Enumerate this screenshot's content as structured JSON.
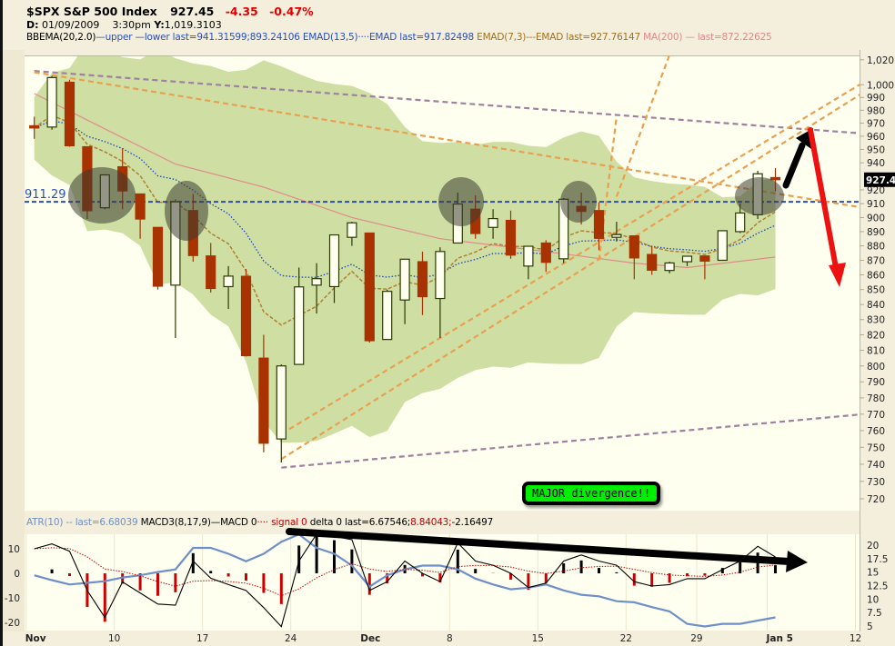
{
  "header": {
    "symbol_title": "$SPX S&P 500 Index",
    "last_price": "927.45",
    "change": "-4.35",
    "change_pct": "-0.47%",
    "date_label": "D:",
    "date_value": "01/09/2009",
    "time_value": "3:30pm",
    "y_label": "Y:",
    "y_value": "1,019.3103"
  },
  "legend": {
    "bb_name": "BBEMA(20,2.0)",
    "bb_upper": "upper",
    "bb_lower": "lower",
    "bb_last": "last=941.31599;893.24106",
    "ema13_name": "EMAD(13,5)",
    "ema13_last": "EMAD last=917.82498",
    "ema7_name": "EMAD(7,3)",
    "ema7_last": "EMAD last=927.76147",
    "ma200_name": "MA(200)",
    "ma200_last": "last=872.22625",
    "atr_name": "ATR(10)",
    "atr_last": "last=6.68039",
    "macd_name": "MACD3(8,17,9)",
    "macd_line": "MACD 0",
    "signal_line": "signal 0",
    "delta_last": "delta 0 last=6.67546;",
    "signal_last": "8.84043;",
    "delta_value": "-2.16497"
  },
  "annotation": {
    "text": "MAJOR divergence!!"
  },
  "price_badge": "927.4",
  "colors": {
    "up_candle": "#2a3a00",
    "down_candle": "#a83200",
    "bb_fill": "#cfdfa4",
    "ema13": "#2244bb",
    "ema7": "#b08030",
    "ma200": "#e08a8a",
    "support": "#2a4fb8",
    "trend_orange": "#e8a050",
    "trend_purple": "#a080a0",
    "macd": "#000000",
    "signal": "#cc0000",
    "atr": "#6f8fc8",
    "arrow_up": "#000000",
    "arrow_down": "#ee1111"
  },
  "chart_data": [
    {
      "type": "candlestick",
      "title": "$SPX S&P 500 Index",
      "scale": "log",
      "ylim": [
        715,
        1025
      ],
      "y_ticks": [
        "1,020",
        "1,000",
        "990",
        "980",
        "970",
        "960",
        "950",
        "940",
        "920",
        "910",
        "900",
        "890",
        "880",
        "870",
        "860",
        "850",
        "840",
        "830",
        "820",
        "810",
        "800",
        "790",
        "780",
        "770",
        "760",
        "750",
        "740",
        "730",
        "720"
      ],
      "x_ticks": [
        {
          "date": "2008-11-03",
          "label": "Nov",
          "bold": true
        },
        {
          "date": "2008-11-10",
          "label": "10"
        },
        {
          "date": "2008-11-17",
          "label": "17"
        },
        {
          "date": "2008-11-24",
          "label": "24"
        },
        {
          "date": "2008-12-01",
          "label": "Dec",
          "bold": true
        },
        {
          "date": "2008-12-08",
          "label": "8"
        },
        {
          "date": "2008-12-15",
          "label": "15"
        },
        {
          "date": "2008-12-22",
          "label": "22"
        },
        {
          "date": "2008-12-29",
          "label": "29"
        },
        {
          "date": "2009-01-05",
          "label": "Jan 5",
          "bold": true
        },
        {
          "date": "2009-01-12",
          "label": "12"
        }
      ],
      "support_level": {
        "value": 911.29,
        "label": "911.29"
      },
      "dates": [
        "2008-11-03",
        "2008-11-04",
        "2008-11-05",
        "2008-11-06",
        "2008-11-07",
        "2008-11-10",
        "2008-11-11",
        "2008-11-12",
        "2008-11-13",
        "2008-11-14",
        "2008-11-17",
        "2008-11-18",
        "2008-11-19",
        "2008-11-20",
        "2008-11-21",
        "2008-11-24",
        "2008-11-25",
        "2008-11-26",
        "2008-11-28",
        "2008-12-01",
        "2008-12-02",
        "2008-12-03",
        "2008-12-04",
        "2008-12-05",
        "2008-12-08",
        "2008-12-09",
        "2008-12-10",
        "2008-12-11",
        "2008-12-12",
        "2008-12-15",
        "2008-12-16",
        "2008-12-17",
        "2008-12-18",
        "2008-12-19",
        "2008-12-22",
        "2008-12-23",
        "2008-12-24",
        "2008-12-26",
        "2008-12-29",
        "2008-12-30",
        "2008-12-31",
        "2009-01-02",
        "2009-01-05"
      ],
      "ohlc": [
        [
          968,
          975,
          958,
          966.3
        ],
        [
          967,
          1007,
          965,
          1005.75
        ],
        [
          1002,
          1004,
          952,
          952.77
        ],
        [
          952,
          952,
          899,
          904.88
        ],
        [
          907,
          931,
          906,
          930.99
        ],
        [
          937,
          951,
          906,
          919.21
        ],
        [
          917,
          917,
          885,
          898.95
        ],
        [
          893,
          893,
          850,
          852.3
        ],
        [
          853,
          913,
          818,
          911.29
        ],
        [
          905,
          917,
          869,
          873.29
        ],
        [
          873,
          882,
          848,
          850.75
        ],
        [
          852,
          866,
          837,
          859.12
        ],
        [
          859,
          864,
          806,
          806.58
        ],
        [
          805,
          820,
          747,
          752.44
        ],
        [
          755,
          801,
          741,
          800.03
        ],
        [
          801,
          865,
          801,
          851.81
        ],
        [
          853,
          868,
          834,
          857.39
        ],
        [
          852,
          887,
          841,
          887.68
        ],
        [
          886,
          897,
          880,
          896.24
        ],
        [
          889,
          889,
          815,
          816.21
        ],
        [
          817,
          850,
          817,
          848.81
        ],
        [
          843,
          871,
          827,
          870.74
        ],
        [
          869,
          876,
          833,
          845.22
        ],
        [
          844,
          879,
          818,
          876.07
        ],
        [
          882,
          918,
          882,
          909.7
        ],
        [
          906,
          916,
          885,
          888.67
        ],
        [
          893,
          906,
          885,
          899.24
        ],
        [
          898,
          905,
          871,
          873.59
        ],
        [
          866,
          880,
          857,
          879.73
        ],
        [
          882,
          884,
          862,
          868.57
        ],
        [
          871,
          914,
          868,
          913.18
        ],
        [
          908,
          918,
          895,
          904.42
        ],
        [
          905,
          911,
          877,
          885.28
        ],
        [
          886,
          897,
          883,
          887.88
        ],
        [
          887,
          887,
          857,
          871.63
        ],
        [
          874,
          880,
          860,
          863.16
        ],
        [
          863,
          869,
          861,
          868.15
        ],
        [
          869,
          873,
          866,
          872.8
        ],
        [
          873,
          873,
          857,
          869.42
        ],
        [
          870,
          891,
          870,
          890.64
        ],
        [
          890,
          910,
          889,
          903.25
        ],
        [
          902,
          934,
          899,
          931.8
        ],
        [
          929,
          936,
          919,
          927.45
        ]
      ],
      "ma200": [
        {
          "date": "2008-11-03",
          "value": 993
        },
        {
          "date": "2008-11-13",
          "value": 939
        },
        {
          "date": "2008-11-20",
          "value": 922
        },
        {
          "date": "2008-11-28",
          "value": 900
        },
        {
          "date": "2008-12-05",
          "value": 885
        },
        {
          "date": "2008-12-15",
          "value": 876
        },
        {
          "date": "2008-12-22",
          "value": 868
        },
        {
          "date": "2008-12-26",
          "value": 865
        },
        {
          "date": "2009-01-05",
          "value": 872.23
        }
      ],
      "trendlines": [
        {
          "color": "trend_purple",
          "from": [
            "2008-11-03",
            1011
          ],
          "to": [
            "2009-01-12",
            962
          ]
        },
        {
          "color": "trend_orange",
          "from": [
            "2008-11-03",
            1010
          ],
          "to": [
            "2009-01-12",
            907
          ]
        },
        {
          "color": "trend_orange",
          "from": [
            "2008-11-21",
            758
          ],
          "to": [
            "2009-01-12",
            1002
          ]
        },
        {
          "color": "trend_orange",
          "from": [
            "2008-11-21",
            743
          ],
          "to": [
            "2009-01-12",
            994
          ]
        },
        {
          "color": "trend_purple",
          "from": [
            "2008-11-21",
            738
          ],
          "to": [
            "2009-01-12",
            770
          ]
        },
        {
          "color": "trend_orange",
          "from": [
            "2008-12-19",
            915
          ],
          "to": [
            "2008-12-24",
            1024
          ]
        },
        {
          "color": "trend_orange",
          "from": [
            "2008-12-18",
            870
          ],
          "to": [
            "2008-12-19",
            975
          ]
        }
      ]
    },
    {
      "type": "line",
      "title": "MACD3(8,17,9) / ATR(10)",
      "left_ylim": [
        -23,
        13
      ],
      "left_ticks": [
        10,
        0,
        -10,
        -20
      ],
      "right_ylim": [
        4,
        22
      ],
      "right_ticks": [
        "20",
        "17.5",
        "15",
        "12.5",
        "10",
        "7.5",
        "5"
      ],
      "macd": [
        10,
        12,
        9,
        -7,
        -18,
        -3.5,
        -8,
        -12.5,
        -13,
        5,
        -2,
        -4.6,
        -7,
        -14,
        -21.7,
        5,
        16,
        15,
        13.7,
        -7,
        -3.4,
        5,
        0,
        -3.4,
        12.4,
        5,
        3.3,
        0,
        -5.8,
        -4,
        5,
        7.5,
        5,
        3.3,
        -3.4,
        -5.2,
        -4.6,
        -2.2,
        -2.2,
        1.5,
        5,
        11,
        6.68
      ],
      "atr": [
        14.4,
        13.5,
        12.7,
        13,
        13.3,
        14,
        14.4,
        15,
        15.5,
        19.5,
        19.5,
        18.4,
        17,
        18.4,
        20.6,
        22,
        19.5,
        18.4,
        16.2,
        12.3,
        14.4,
        15.5,
        16.2,
        16.2,
        15.5,
        13.8,
        12.7,
        11.8,
        12.1,
        12.7,
        11.6,
        10.8,
        10.5,
        9.6,
        9.4,
        8.5,
        7.7,
        5.4,
        4.9,
        5.4,
        5.4,
        6.0,
        6.6
      ]
    }
  ]
}
